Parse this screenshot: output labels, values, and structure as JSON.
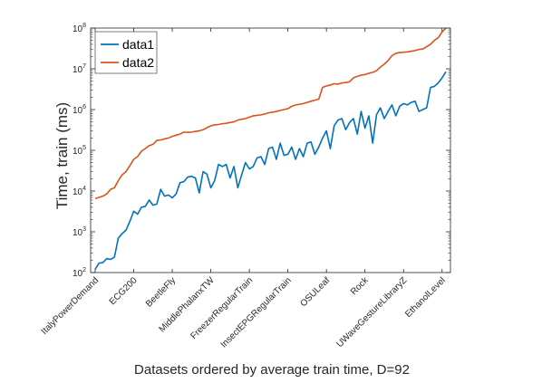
{
  "chart_data": {
    "type": "line",
    "xlabel": "Datasets ordered by average train time, D=92",
    "ylabel": "Time, train (ms)",
    "yscale": "log",
    "ylim": [
      100,
      100000000
    ],
    "xlim": [
      1,
      92
    ],
    "y_ticks": [
      {
        "value": 100,
        "base": "10",
        "exp": "2"
      },
      {
        "value": 1000,
        "base": "10",
        "exp": "3"
      },
      {
        "value": 10000,
        "base": "10",
        "exp": "4"
      },
      {
        "value": 100000,
        "base": "10",
        "exp": "5"
      },
      {
        "value": 1000000,
        "base": "10",
        "exp": "6"
      },
      {
        "value": 10000000,
        "base": "10",
        "exp": "7"
      },
      {
        "value": 100000000,
        "base": "10",
        "exp": "8"
      }
    ],
    "x_ticks": [
      {
        "index": 1,
        "label": "ItalyPowerDemand"
      },
      {
        "index": 11,
        "label": "ECG200"
      },
      {
        "index": 21,
        "label": "BeetleFly"
      },
      {
        "index": 31,
        "label": "MiddlePhalanxTW"
      },
      {
        "index": 41,
        "label": "FreezerRegularTrain"
      },
      {
        "index": 51,
        "label": "InsectEPGRegularTrain"
      },
      {
        "index": 61,
        "label": "OSULeaf"
      },
      {
        "index": 71,
        "label": "Rock"
      },
      {
        "index": 81,
        "label": "UWaveGestureLibraryZ"
      },
      {
        "index": 91,
        "label": "EthanolLevel"
      }
    ],
    "legend_position": "top-left",
    "grid": false,
    "series": [
      {
        "name": "data1",
        "color": "#0072BD",
        "values": [
          120,
          170,
          175,
          220,
          210,
          240,
          700,
          900,
          1100,
          1800,
          3200,
          2700,
          4000,
          4200,
          6000,
          4500,
          4800,
          11000,
          7500,
          8000,
          6800,
          8500,
          16000,
          17000,
          22000,
          23000,
          21000,
          9000,
          30000,
          26000,
          12000,
          18000,
          45000,
          40000,
          45000,
          21000,
          40000,
          12000,
          25000,
          50000,
          35000,
          40000,
          65000,
          70000,
          45000,
          110000,
          120000,
          60000,
          150000,
          75000,
          80000,
          120000,
          60000,
          110000,
          70000,
          150000,
          160000,
          80000,
          120000,
          200000,
          300000,
          110000,
          400000,
          550000,
          600000,
          320000,
          480000,
          600000,
          250000,
          900000,
          350000,
          700000,
          150000,
          750000,
          1100000,
          600000,
          900000,
          1300000,
          700000,
          1200000,
          1400000,
          1300000,
          1500000,
          1600000,
          900000,
          1000000,
          1100000,
          3500000,
          3700000,
          4500000,
          6000000,
          8500000
        ]
      },
      {
        "name": "data2",
        "color": "#D95319",
        "values": [
          6500,
          7000,
          7500,
          8500,
          11000,
          12000,
          18000,
          25000,
          30000,
          42000,
          60000,
          70000,
          95000,
          110000,
          130000,
          140000,
          175000,
          180000,
          190000,
          200000,
          220000,
          235000,
          250000,
          280000,
          275000,
          280000,
          290000,
          300000,
          320000,
          360000,
          400000,
          420000,
          430000,
          450000,
          460000,
          480000,
          500000,
          550000,
          580000,
          600000,
          650000,
          700000,
          720000,
          740000,
          780000,
          830000,
          860000,
          900000,
          950000,
          1000000,
          1050000,
          1200000,
          1300000,
          1350000,
          1400000,
          1500000,
          1600000,
          1700000,
          1800000,
          3500000,
          3800000,
          4000000,
          4300000,
          4200000,
          4500000,
          4600000,
          4800000,
          6000000,
          6500000,
          7000000,
          7200000,
          7800000,
          8200000,
          9000000,
          11000000,
          13000000,
          16000000,
          21000000,
          24000000,
          25000000,
          25500000,
          26000000,
          27000000,
          28000000,
          30000000,
          30500000,
          35000000,
          40000000,
          50000000,
          58000000,
          80000000,
          100000000
        ]
      }
    ]
  }
}
